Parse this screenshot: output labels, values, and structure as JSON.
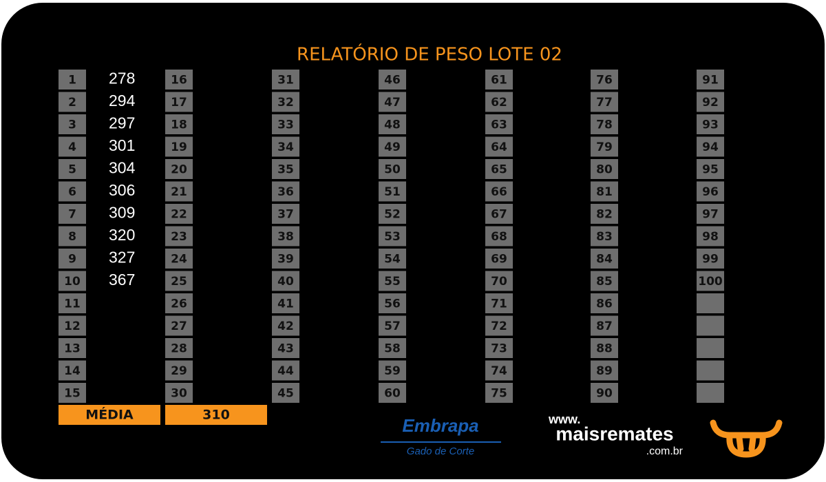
{
  "title": "RELATÓRIO DE PESO LOTE 02",
  "columns": [
    [
      1,
      2,
      3,
      4,
      5,
      6,
      7,
      8,
      9,
      10,
      11,
      12,
      13,
      14,
      15
    ],
    [
      16,
      17,
      18,
      19,
      20,
      21,
      22,
      23,
      24,
      25,
      26,
      27,
      28,
      29,
      30
    ],
    [
      31,
      32,
      33,
      34,
      35,
      36,
      37,
      38,
      39,
      40,
      41,
      42,
      43,
      44,
      45
    ],
    [
      46,
      47,
      48,
      49,
      50,
      51,
      52,
      53,
      54,
      55,
      56,
      57,
      58,
      59,
      60
    ],
    [
      61,
      62,
      63,
      64,
      65,
      66,
      67,
      68,
      69,
      70,
      71,
      72,
      73,
      74,
      75
    ],
    [
      76,
      77,
      78,
      79,
      80,
      81,
      82,
      83,
      84,
      85,
      86,
      87,
      88,
      89,
      90
    ],
    [
      91,
      92,
      93,
      94,
      95,
      96,
      97,
      98,
      99,
      100
    ]
  ],
  "weights": [
    278,
    294,
    297,
    301,
    304,
    306,
    309,
    320,
    327,
    367
  ],
  "summary": {
    "label": "MÉDIA",
    "value": 310
  },
  "logos": {
    "embrapa": {
      "name": "Embrapa",
      "subtitle": "Gado de Corte"
    },
    "maisremates": {
      "prefix": "www.",
      "name": "maisremates",
      "suffix": ".com.br"
    }
  }
}
